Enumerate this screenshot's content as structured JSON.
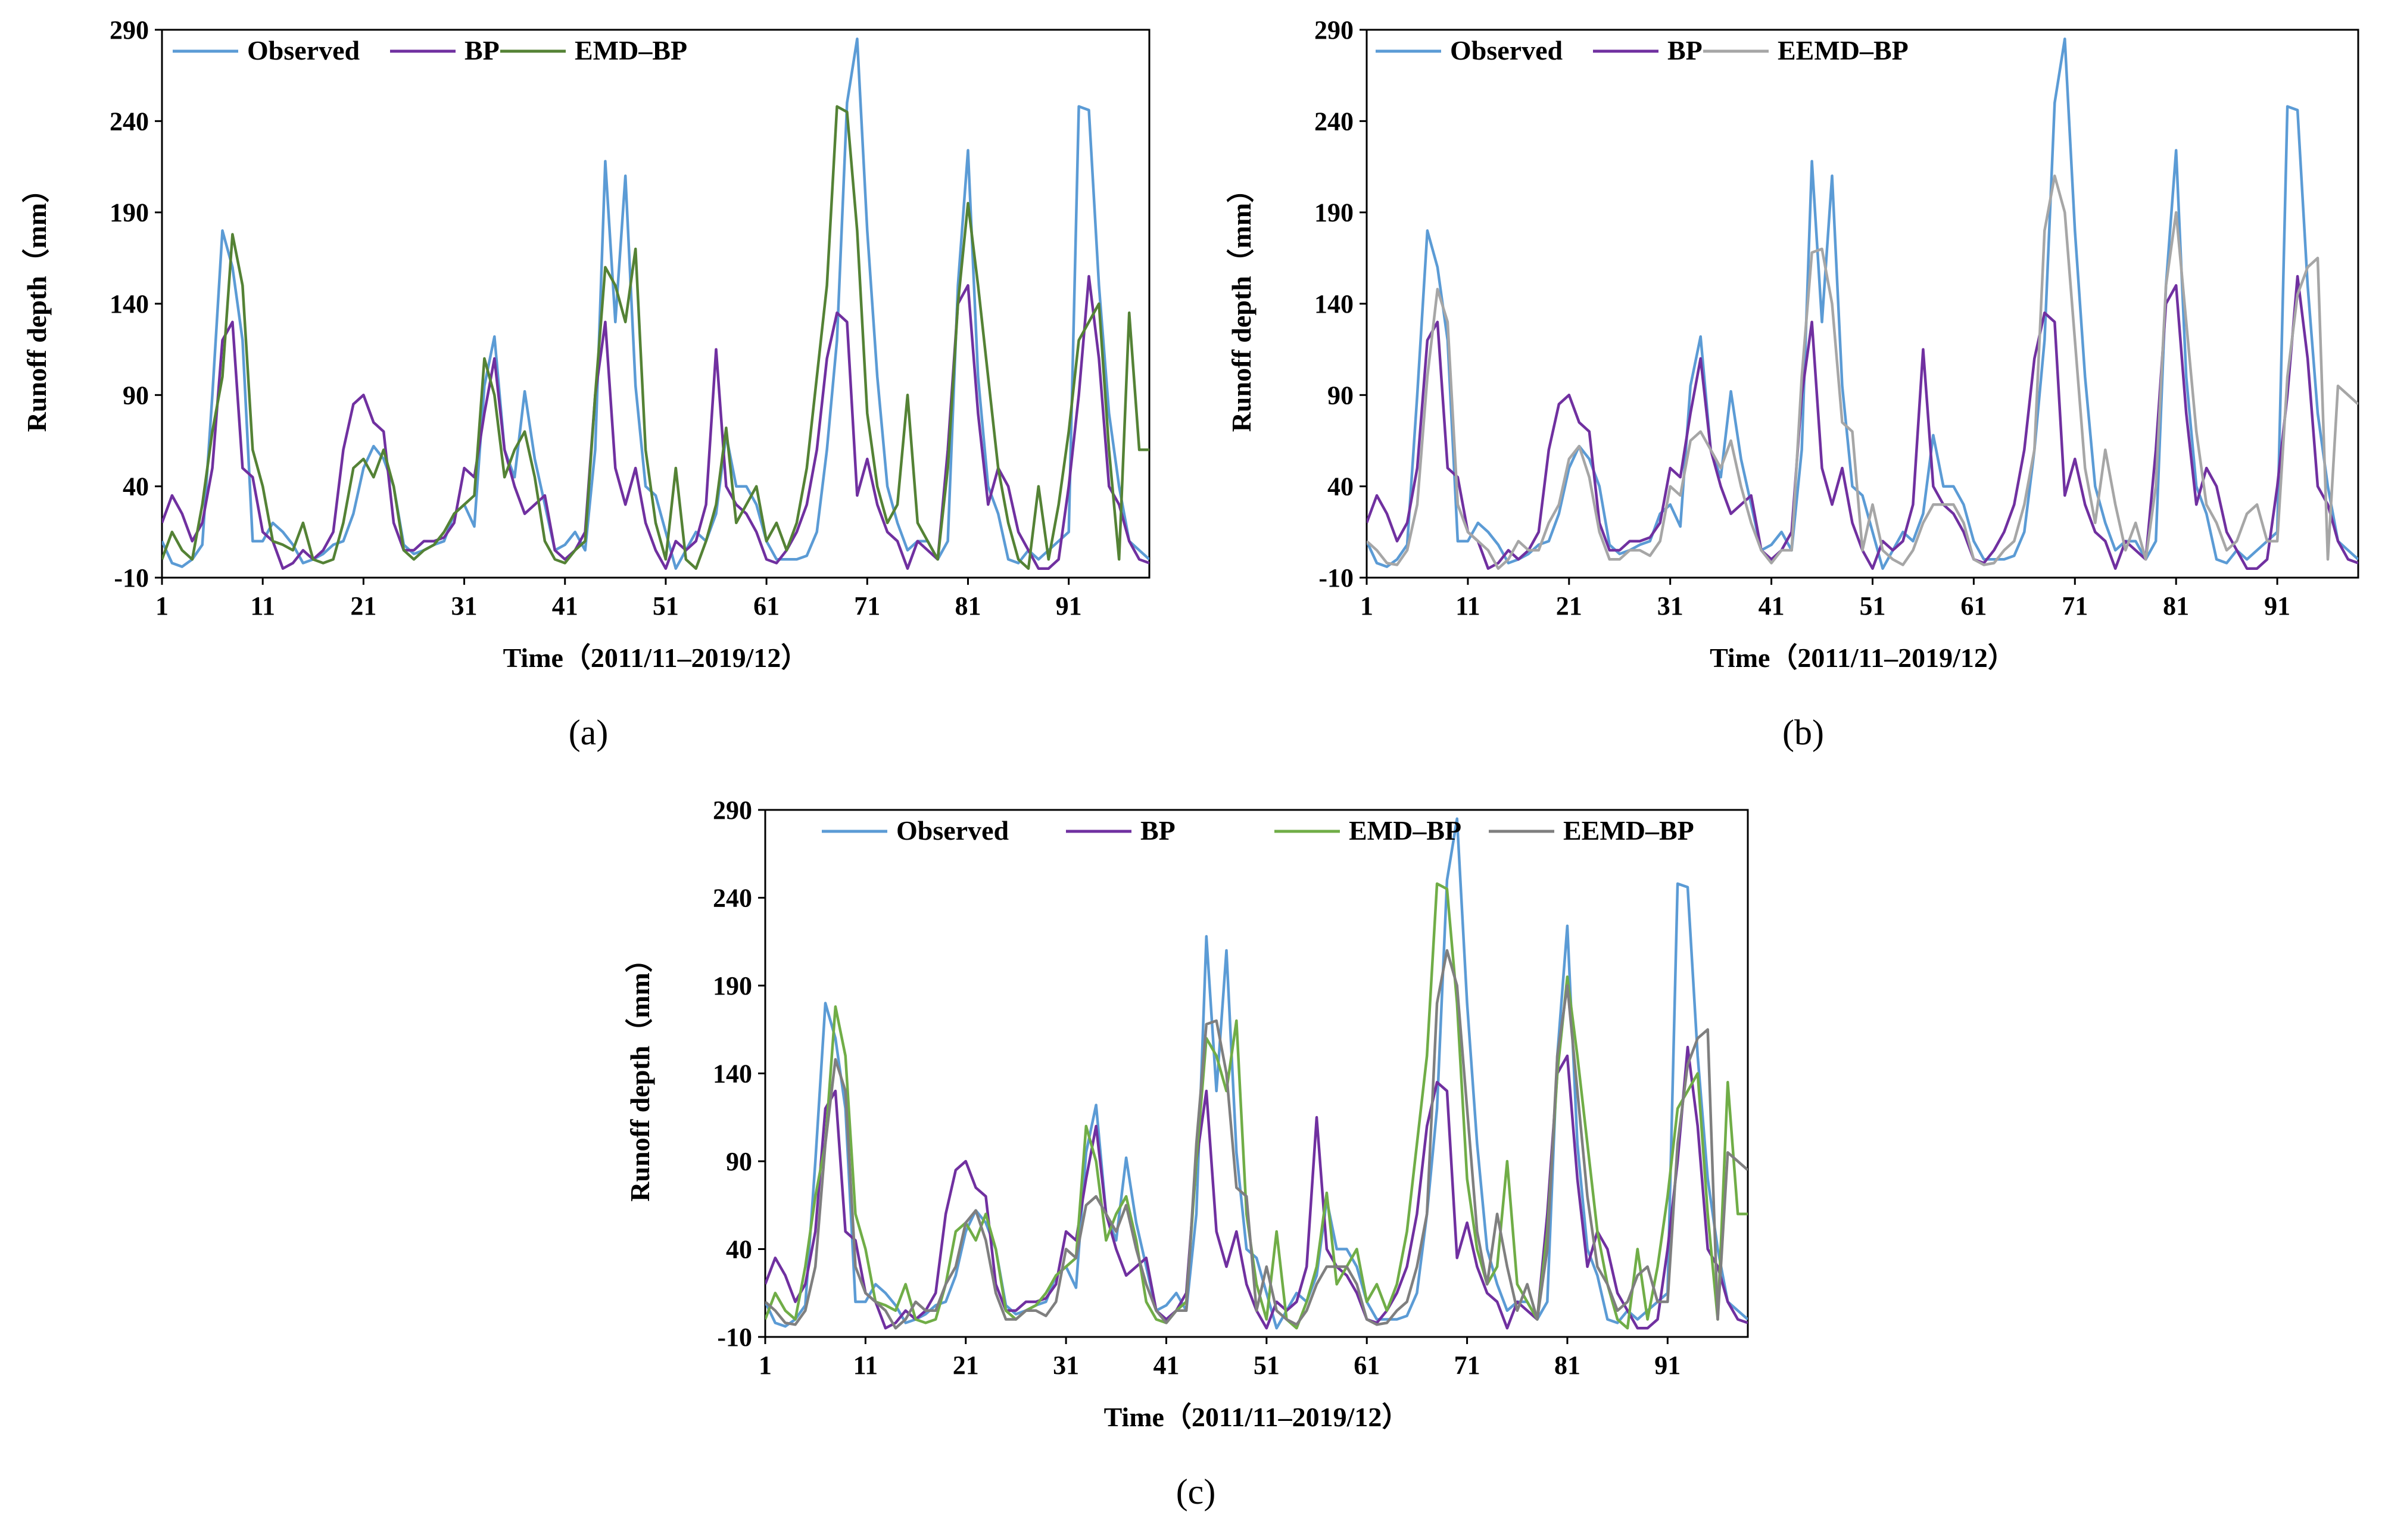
{
  "figure": {
    "panel_labels": [
      "(a)",
      "(b)",
      "(c)"
    ]
  },
  "colors": {
    "Observed": "#5B9BD5",
    "BP": "#7030A0",
    "EMD–BP": "#548235",
    "EEMD–BP": "#A6A6A6",
    "EMD–BP (c)": "#70AD47",
    "EEMD–BP (c)": "#7F7F7F"
  },
  "chart_data": [
    {
      "type": "line",
      "label": "(a)",
      "xlabel": "Time（2011/11–2019/12）",
      "ylabel": "Runoff depth（mm）",
      "x_ticks": [
        1,
        11,
        21,
        31,
        41,
        51,
        61,
        71,
        81,
        91
      ],
      "y_ticks": [
        -10,
        40,
        90,
        140,
        190,
        240,
        290
      ],
      "xlim": [
        1,
        99
      ],
      "ylim": [
        -10,
        290
      ],
      "legend": [
        "Observed",
        "BP",
        "EMD–BP"
      ],
      "series_keys": [
        "observed",
        "bp",
        "emd"
      ]
    },
    {
      "type": "line",
      "label": "(b)",
      "xlabel": "Time（2011/11–2019/12）",
      "ylabel": "Runoff depth（mm）",
      "x_ticks": [
        1,
        11,
        21,
        31,
        41,
        51,
        61,
        71,
        81,
        91
      ],
      "y_ticks": [
        -10,
        40,
        90,
        140,
        190,
        240,
        290
      ],
      "xlim": [
        1,
        99
      ],
      "ylim": [
        -10,
        290
      ],
      "legend": [
        "Observed",
        "BP",
        "EEMD–BP"
      ],
      "series_keys": [
        "observed",
        "bp",
        "eemd"
      ]
    },
    {
      "type": "line",
      "label": "(c)",
      "xlabel": "Time（2011/11–2019/12）",
      "ylabel": "Runoff depth（mm）",
      "x_ticks": [
        1,
        11,
        21,
        31,
        41,
        51,
        61,
        71,
        81,
        91
      ],
      "y_ticks": [
        -10,
        40,
        90,
        140,
        190,
        240,
        290
      ],
      "xlim": [
        1,
        99
      ],
      "ylim": [
        -10,
        290
      ],
      "legend": [
        "Observed",
        "BP",
        "EMD–BP",
        "EEMD–BP"
      ],
      "series_keys": [
        "observed",
        "bp",
        "emd",
        "eemd"
      ]
    }
  ],
  "series": {
    "observed": {
      "name": "Observed",
      "values": [
        10,
        -2,
        -4,
        0,
        8,
        90,
        180,
        160,
        120,
        10,
        10,
        20,
        15,
        8,
        -2,
        0,
        3,
        8,
        10,
        25,
        50,
        62,
        55,
        40,
        8,
        3,
        5,
        8,
        10,
        25,
        30,
        18,
        95,
        122,
        60,
        45,
        92,
        55,
        30,
        5,
        8,
        15,
        5,
        60,
        218,
        130,
        210,
        95,
        40,
        35,
        15,
        -5,
        5,
        15,
        10,
        25,
        68,
        40,
        40,
        30,
        10,
        0,
        0,
        0,
        2,
        15,
        60,
        120,
        250,
        285,
        180,
        100,
        40,
        20,
        5,
        10,
        10,
        0,
        10,
        150,
        224,
        100,
        40,
        25,
        0,
        -2,
        5,
        0,
        5,
        10,
        15,
        248,
        246,
        150,
        80,
        40,
        10,
        5,
        0
      ],
      "values_note": ""
    },
    "bp": {
      "name": "BP",
      "values": [
        20,
        35,
        25,
        10,
        20,
        50,
        120,
        130,
        50,
        45,
        15,
        10,
        -5,
        -2,
        5,
        0,
        5,
        15,
        60,
        85,
        90,
        75,
        70,
        20,
        5,
        5,
        10,
        10,
        12,
        20,
        50,
        45,
        80,
        110,
        60,
        40,
        25,
        30,
        35,
        5,
        0,
        5,
        15,
        90,
        130,
        50,
        30,
        50,
        20,
        5,
        -5,
        10,
        5,
        10,
        30,
        115,
        40,
        30,
        25,
        15,
        0,
        -2,
        5,
        15,
        30,
        60,
        110,
        135,
        130,
        35,
        55,
        30,
        15,
        10,
        -5,
        10,
        5,
        0,
        60,
        140,
        150,
        80,
        30,
        50,
        40,
        15,
        5,
        -5,
        -5,
        0,
        40,
        90,
        155,
        110,
        40,
        30,
        10,
        0,
        -2
      ],
      "values_note": ""
    },
    "emd": {
      "name": "EMD–BP",
      "values": [
        0,
        15,
        5,
        0,
        30,
        70,
        100,
        178,
        150,
        60,
        40,
        10,
        8,
        5,
        20,
        0,
        -2,
        0,
        20,
        50,
        55,
        45,
        60,
        40,
        5,
        0,
        5,
        8,
        15,
        25,
        30,
        35,
        110,
        90,
        45,
        60,
        70,
        45,
        10,
        0,
        -2,
        5,
        10,
        90,
        160,
        150,
        130,
        170,
        60,
        20,
        0,
        50,
        0,
        -5,
        10,
        30,
        72,
        20,
        30,
        40,
        10,
        20,
        5,
        20,
        50,
        100,
        150,
        248,
        245,
        180,
        80,
        40,
        20,
        30,
        90,
        20,
        10,
        0,
        50,
        140,
        195,
        150,
        100,
        50,
        20,
        0,
        -5,
        40,
        0,
        30,
        70,
        120,
        130,
        140,
        60,
        0,
        135,
        60,
        60
      ],
      "values_note": ""
    },
    "eemd": {
      "name": "EEMD–BP",
      "values": [
        10,
        5,
        -2,
        -3,
        5,
        30,
        100,
        148,
        130,
        30,
        15,
        10,
        5,
        -5,
        0,
        10,
        5,
        5,
        20,
        30,
        55,
        62,
        45,
        15,
        0,
        0,
        5,
        5,
        2,
        10,
        40,
        35,
        65,
        70,
        60,
        50,
        65,
        40,
        20,
        5,
        -2,
        5,
        5,
        100,
        168,
        170,
        140,
        75,
        70,
        5,
        30,
        5,
        0,
        -3,
        5,
        20,
        30,
        30,
        30,
        20,
        0,
        -3,
        -2,
        5,
        10,
        30,
        60,
        180,
        210,
        190,
        120,
        50,
        20,
        60,
        30,
        5,
        20,
        0,
        40,
        150,
        190,
        130,
        70,
        30,
        20,
        5,
        10,
        25,
        30,
        10,
        10,
        100,
        145,
        160,
        165,
        0,
        95,
        90,
        85
      ],
      "values_note": ""
    }
  }
}
